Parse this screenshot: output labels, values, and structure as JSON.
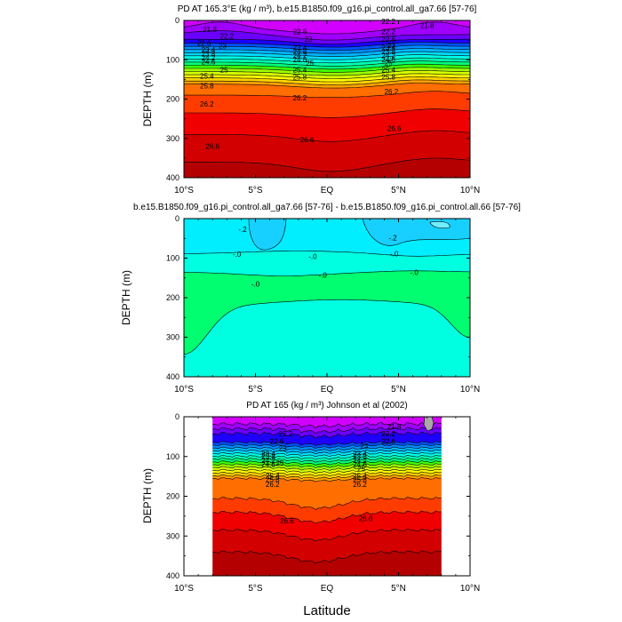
{
  "figure": {
    "xlabel": "Latitude"
  },
  "colors": {
    "background": "#ffffff",
    "frame": "#000000",
    "contour_line": "#000000",
    "land_mask": "#aaaaaa",
    "density_bands": [
      "#d200ff",
      "#a000ff",
      "#6c00ff",
      "#1e00ff",
      "#0050ff",
      "#008cff",
      "#00b4ff",
      "#00dcff",
      "#00ffe6",
      "#00ffb4",
      "#00ff78",
      "#3cff00",
      "#9bff00",
      "#d7ff00",
      "#fffa00",
      "#ffd200",
      "#ffa000",
      "#ff6e00",
      "#ff3c00",
      "#f00000",
      "#d20000",
      "#b40000"
    ],
    "difference_bands": [
      "#18d0ff",
      "#00eeff",
      "#00ffe0",
      "#00ff70"
    ]
  },
  "chart_data": [
    {
      "type": "contour",
      "title": "PD AT 165.3°E (kg / m³), b.e15.B1850.f09_g16.pi_control.all_ga7.66 [57-76]",
      "xlabel": "",
      "ylabel": "DEPTH (m)",
      "xlim": [
        -10,
        10
      ],
      "ylim": [
        0,
        400
      ],
      "y_inverted": true,
      "xtick_values": [
        -10,
        -5,
        0,
        5,
        10
      ],
      "xticklabels": [
        "10°S",
        "5°S",
        "EQ",
        "5°N",
        "10°N"
      ],
      "ytick_values": [
        0,
        100,
        200,
        300,
        400
      ],
      "yticklabels": [
        "0",
        "100",
        "200",
        "300",
        "400"
      ],
      "contour_labels": [
        {
          "lat": -8.2,
          "depth": 25,
          "text": "21.8"
        },
        {
          "lat": -7.0,
          "depth": 42,
          "text": "22.2"
        },
        {
          "lat": -8.6,
          "depth": 60,
          "text": "22.6"
        },
        {
          "lat": -7.3,
          "depth": 67,
          "text": "23"
        },
        {
          "lat": -8.3,
          "depth": 77,
          "text": "23.4"
        },
        {
          "lat": -8.3,
          "depth": 87,
          "text": "23.8"
        },
        {
          "lat": -8.3,
          "depth": 97,
          "text": "24.2"
        },
        {
          "lat": -8.3,
          "depth": 107,
          "text": "24.6"
        },
        {
          "lat": -7.2,
          "depth": 128,
          "text": "25"
        },
        {
          "lat": -8.4,
          "depth": 143,
          "text": "25.4"
        },
        {
          "lat": -8.4,
          "depth": 168,
          "text": "25.8"
        },
        {
          "lat": -8.4,
          "depth": 215,
          "text": "26.2"
        },
        {
          "lat": -8.0,
          "depth": 322,
          "text": "26.6"
        },
        {
          "lat": -1.9,
          "depth": 30,
          "text": "22.6"
        },
        {
          "lat": -1.3,
          "depth": 50,
          "text": "23"
        },
        {
          "lat": -1.9,
          "depth": 71,
          "text": "23.4"
        },
        {
          "lat": -1.9,
          "depth": 81,
          "text": "23.8"
        },
        {
          "lat": -1.9,
          "depth": 91,
          "text": "24.2"
        },
        {
          "lat": -1.9,
          "depth": 101,
          "text": "24.6"
        },
        {
          "lat": -1.2,
          "depth": 111,
          "text": "25"
        },
        {
          "lat": -1.9,
          "depth": 127,
          "text": "25.4"
        },
        {
          "lat": -1.9,
          "depth": 145,
          "text": "25.8"
        },
        {
          "lat": -1.9,
          "depth": 199,
          "text": "26.2"
        },
        {
          "lat": -1.4,
          "depth": 305,
          "text": "26.6"
        },
        {
          "lat": 4.3,
          "depth": 4,
          "text": "22.2"
        },
        {
          "lat": 4.3,
          "depth": 30,
          "text": "22.2"
        },
        {
          "lat": 4.3,
          "depth": 49,
          "text": "22.6"
        },
        {
          "lat": 4.5,
          "depth": 65,
          "text": "23"
        },
        {
          "lat": 4.3,
          "depth": 71,
          "text": "23.4"
        },
        {
          "lat": 4.3,
          "depth": 81,
          "text": "23.8"
        },
        {
          "lat": 4.3,
          "depth": 91,
          "text": "24.2"
        },
        {
          "lat": 4.3,
          "depth": 101,
          "text": "24.6"
        },
        {
          "lat": 4.3,
          "depth": 111,
          "text": "25"
        },
        {
          "lat": 4.3,
          "depth": 127,
          "text": "25.4"
        },
        {
          "lat": 4.3,
          "depth": 145,
          "text": "25.8"
        },
        {
          "lat": 4.5,
          "depth": 183,
          "text": "26.2"
        },
        {
          "lat": 4.7,
          "depth": 277,
          "text": "26.6"
        },
        {
          "lat": 7.0,
          "depth": 15,
          "text": "21.8"
        }
      ]
    },
    {
      "type": "contour",
      "title": "b.e15.B1850.f09_g16.pi_control.all_ga7.66 [57-76] - b.e15.B1850.f09_g16.pi_control.all.66 [57-76]",
      "xlabel": "",
      "ylabel": "DEPTH (m)",
      "xlim": [
        -10,
        10
      ],
      "ylim": [
        0,
        400
      ],
      "y_inverted": true,
      "xtick_values": [
        -10,
        -5,
        0,
        5,
        10
      ],
      "xticklabels": [
        "10°S",
        "5°S",
        "EQ",
        "5°N",
        "10°N"
      ],
      "ytick_values": [
        0,
        100,
        200,
        300,
        400
      ],
      "yticklabels": [
        "0",
        "100",
        "200",
        "300",
        "400"
      ],
      "contour_labels": [
        {
          "lat": -5.9,
          "depth": 29,
          "text": "-.2"
        },
        {
          "lat": 4.6,
          "depth": 50,
          "text": "-.2"
        },
        {
          "lat": -6.3,
          "depth": 92,
          "text": "-.0"
        },
        {
          "lat": -1.0,
          "depth": 98,
          "text": "-.0"
        },
        {
          "lat": 4.7,
          "depth": 91,
          "text": "-.0"
        },
        {
          "lat": -0.3,
          "depth": 145,
          "text": "-.0"
        },
        {
          "lat": 6.1,
          "depth": 138,
          "text": "-.0"
        },
        {
          "lat": -5.0,
          "depth": 167,
          "text": "-.0"
        }
      ]
    },
    {
      "type": "contour",
      "title": "PD AT 165 (kg / m³) Johnson et al (2002)",
      "xlabel": "Latitude",
      "ylabel": "DEPTH (m)",
      "xlim": [
        -10,
        10
      ],
      "ylim": [
        0,
        400
      ],
      "data_lat_range": [
        -8,
        8
      ],
      "y_inverted": true,
      "xtick_values": [
        -10,
        -5,
        0,
        5,
        10
      ],
      "xticklabels": [
        "10°S",
        "5°S",
        "EQ",
        "5°N",
        "10°N"
      ],
      "ytick_values": [
        0,
        100,
        200,
        300,
        400
      ],
      "yticklabels": [
        "0",
        "100",
        "200",
        "300",
        "400"
      ],
      "contour_labels": [
        {
          "lat": 4.7,
          "depth": 27,
          "text": "21.8"
        },
        {
          "lat": -2.9,
          "depth": 45,
          "text": "22.2"
        },
        {
          "lat": 4.3,
          "depth": 45,
          "text": "22.2"
        },
        {
          "lat": -3.5,
          "depth": 63,
          "text": "22.6"
        },
        {
          "lat": 4.3,
          "depth": 63,
          "text": "22.6"
        },
        {
          "lat": -3.1,
          "depth": 81,
          "text": "23"
        },
        {
          "lat": 2.6,
          "depth": 76,
          "text": "23"
        },
        {
          "lat": -4.1,
          "depth": 95,
          "text": "23.4"
        },
        {
          "lat": 2.3,
          "depth": 95,
          "text": "23.4"
        },
        {
          "lat": -4.1,
          "depth": 102,
          "text": "23.8"
        },
        {
          "lat": 2.3,
          "depth": 102,
          "text": "23.8"
        },
        {
          "lat": -4.1,
          "depth": 112,
          "text": "24.2"
        },
        {
          "lat": 2.3,
          "depth": 112,
          "text": "24.2"
        },
        {
          "lat": -4.1,
          "depth": 122,
          "text": "24.6"
        },
        {
          "lat": 2.3,
          "depth": 122,
          "text": "24.6"
        },
        {
          "lat": -3.3,
          "depth": 118,
          "text": "25"
        },
        {
          "lat": 2.4,
          "depth": 133,
          "text": "25"
        },
        {
          "lat": -3.8,
          "depth": 151,
          "text": "25.4"
        },
        {
          "lat": 2.3,
          "depth": 151,
          "text": "25.4"
        },
        {
          "lat": -3.8,
          "depth": 160,
          "text": "25.8"
        },
        {
          "lat": 2.3,
          "depth": 160,
          "text": "25.8"
        },
        {
          "lat": -3.8,
          "depth": 172,
          "text": "26.2"
        },
        {
          "lat": 2.3,
          "depth": 172,
          "text": "26.2"
        },
        {
          "lat": -2.8,
          "depth": 263,
          "text": "26.6"
        },
        {
          "lat": 2.7,
          "depth": 258,
          "text": "26.6"
        }
      ]
    }
  ]
}
